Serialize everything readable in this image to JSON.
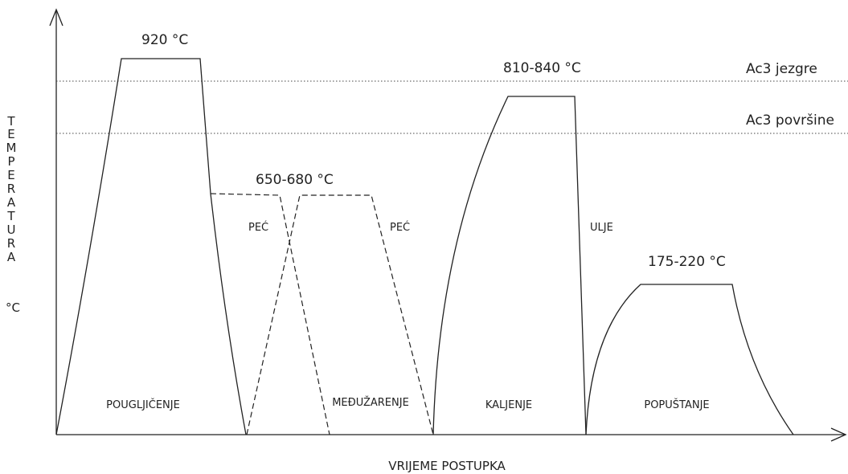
{
  "diagram": {
    "y_axis_label": [
      "T",
      "E",
      "M",
      "P",
      "E",
      "R",
      "A",
      "T",
      "U",
      "R",
      "A"
    ],
    "y_axis_unit": "°C",
    "x_axis_label": "VRIJEME POSTUPKA",
    "reference_lines": {
      "ac3_core": "Ac3 jezgre",
      "ac3_surface": "Ac3 površine"
    },
    "temperatures": {
      "carburizing": "920 °C",
      "intermediate": "650-680 °C",
      "hardening": "810-840 °C",
      "tempering": "175-220 °C"
    },
    "cooling_media": {
      "furnace_1": "PEĆ",
      "furnace_2": "PEĆ",
      "oil": "ULJE"
    },
    "stages": {
      "carburizing": "POUGLJIČENJE",
      "intermediate": "MEĐUŽARENJE",
      "hardening": "KALJENJE",
      "tempering": "POPUŠTANJE"
    }
  }
}
